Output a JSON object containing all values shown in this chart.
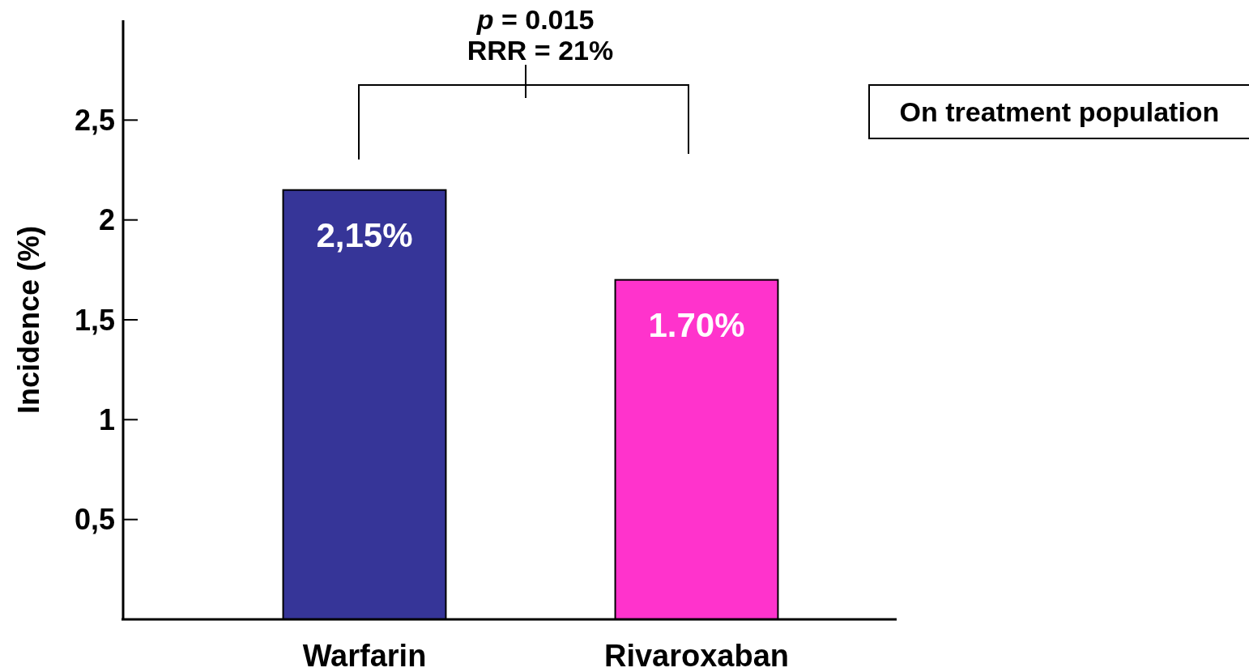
{
  "chart_data": {
    "type": "bar",
    "ylabel": "Incidence (%)",
    "categories": [
      "Warfarin",
      "Rivaroxaban"
    ],
    "values": [
      2.15,
      1.7
    ],
    "colors": [
      "#363598",
      "#ff33cc"
    ],
    "value_labels": [
      "2,15%",
      "1.70%"
    ],
    "ylim": [
      0,
      3
    ],
    "yticks": [
      {
        "value": 0.5,
        "label": "0,5"
      },
      {
        "value": 1,
        "label": "1"
      },
      {
        "value": 1.5,
        "label": "1,5"
      },
      {
        "value": 2,
        "label": "2"
      },
      {
        "value": 2.5,
        "label": "2,5"
      }
    ],
    "grid": false,
    "annotations": [
      "p = 0.015",
      "RRR = 21%",
      "On treatment population"
    ]
  }
}
